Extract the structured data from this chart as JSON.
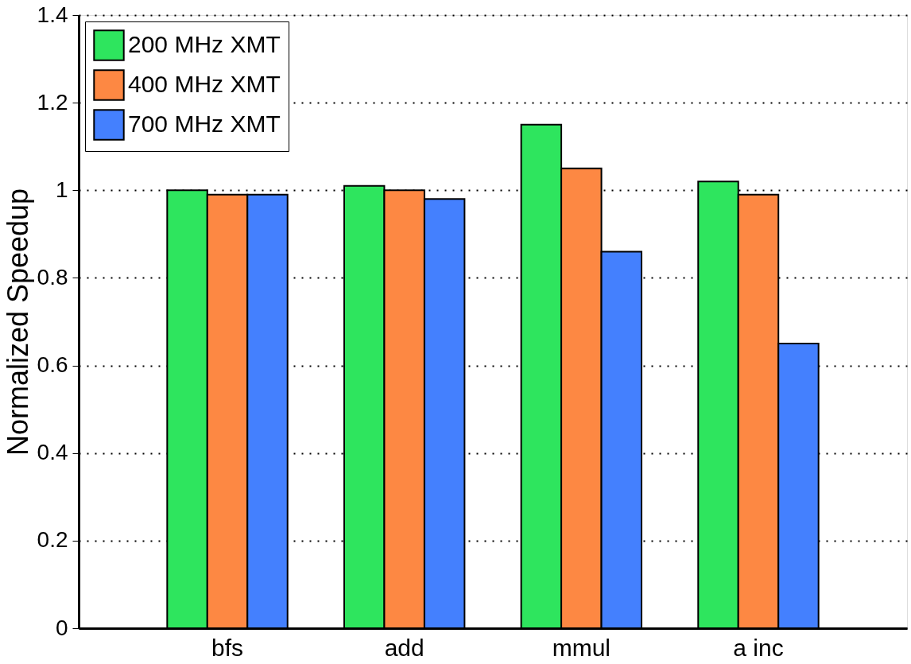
{
  "chart_data": {
    "type": "bar",
    "ylabel": "Normalized Speedup",
    "categories": [
      "bfs",
      "add",
      "mmul",
      "a inc"
    ],
    "series": [
      {
        "name": "200 MHz XMT",
        "color": "#2ee55e",
        "values": [
          1.0,
          1.01,
          1.15,
          1.02
        ]
      },
      {
        "name": "400 MHz XMT",
        "color": "#fd8843",
        "values": [
          0.99,
          1.0,
          1.05,
          0.99
        ]
      },
      {
        "name": "700 MHz XMT",
        "color": "#4480fe",
        "values": [
          0.99,
          0.98,
          0.86,
          0.65
        ]
      }
    ],
    "ylim": [
      0,
      1.4
    ],
    "yticks": [
      0,
      0.2,
      0.4,
      0.6,
      0.8,
      1,
      1.2,
      1.4
    ],
    "grid": "y",
    "legend": "top left"
  }
}
